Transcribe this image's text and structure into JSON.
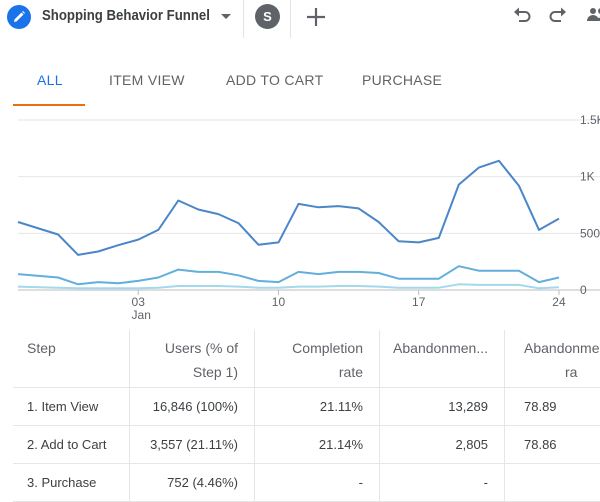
{
  "app": {
    "tab_title": "Shopping Behavior Funnel",
    "tab_avatar_letter": "S"
  },
  "icons": {
    "tab": "pencil-icon",
    "dropdown": "caret-down-icon",
    "add": "plus-icon",
    "undo": "undo-icon",
    "redo": "redo-icon",
    "more": "people-icon"
  },
  "segments": {
    "all": "ALL",
    "item_view": "ITEM VIEW",
    "add_to_cart": "ADD TO CART",
    "purchase": "PURCHASE",
    "active": "ALL"
  },
  "colors": {
    "accent": "#1a73e8",
    "tab_underline": "#e8710a",
    "series_item_view": "#4a86c8",
    "series_add_to_cart": "#62aedd",
    "series_purchase": "#a4d8ec"
  },
  "chart_data": {
    "type": "line",
    "x_ticks": [
      {
        "day": 3,
        "label": "03",
        "sublabel": "Jan"
      },
      {
        "day": 10,
        "label": "10",
        "sublabel": ""
      },
      {
        "day": 17,
        "label": "17",
        "sublabel": ""
      },
      {
        "day": 24,
        "label": "24",
        "sublabel": ""
      }
    ],
    "y_ticks": [
      {
        "value": 1500,
        "label": "1.5K"
      },
      {
        "value": 1000,
        "label": "1K"
      },
      {
        "value": 500,
        "label": "500"
      },
      {
        "value": 0,
        "label": "0"
      }
    ],
    "ylim": [
      0,
      1500
    ],
    "xlim": [
      -3,
      24.3
    ],
    "grid": true,
    "x": [
      -3,
      -1,
      0,
      1,
      2,
      3,
      4,
      5,
      6,
      7,
      8,
      9,
      10,
      11,
      12,
      13,
      14,
      15,
      16,
      17,
      18,
      19,
      20,
      21,
      22,
      23,
      24
    ],
    "series": [
      {
        "name": "",
        "color": "#4a86c8",
        "values": [
          600,
          490,
          310,
          340,
          395,
          445,
          530,
          790,
          710,
          670,
          590,
          400,
          420,
          760,
          730,
          740,
          720,
          600,
          430,
          420,
          460,
          930,
          1080,
          1140,
          920,
          530,
          630
        ]
      },
      {
        "name": "",
        "color": "#62aedd",
        "values": [
          140,
          110,
          50,
          70,
          60,
          80,
          110,
          180,
          160,
          160,
          130,
          80,
          70,
          160,
          140,
          160,
          160,
          150,
          100,
          100,
          100,
          210,
          170,
          170,
          170,
          70,
          110
        ]
      },
      {
        "name": "",
        "color": "#a4d8ec",
        "values": [
          30,
          20,
          15,
          15,
          15,
          15,
          20,
          35,
          35,
          35,
          30,
          20,
          20,
          30,
          30,
          35,
          35,
          30,
          20,
          20,
          20,
          50,
          45,
          45,
          45,
          15,
          25
        ]
      }
    ]
  },
  "table": {
    "headers": {
      "step": "Step",
      "users_1": "Users (% of",
      "users_2": "Step 1)",
      "completion_1": "Completion",
      "completion_2": "rate",
      "abandon": "Abandonmen...",
      "abandon_rate_1": "Abandonme",
      "abandon_rate_2": "ra"
    },
    "rows": [
      {
        "step": "1. Item View",
        "users": "16,846 (100%)",
        "completion": "21.11%",
        "abandonments": "13,289",
        "abandon_rate": "78.89"
      },
      {
        "step": "2. Add to Cart",
        "users": "3,557 (21.11%)",
        "completion": "21.14%",
        "abandonments": "2,805",
        "abandon_rate": "78.86"
      },
      {
        "step": "3. Purchase",
        "users": "752 (4.46%)",
        "completion": "-",
        "abandonments": "-",
        "abandon_rate": ""
      }
    ]
  }
}
